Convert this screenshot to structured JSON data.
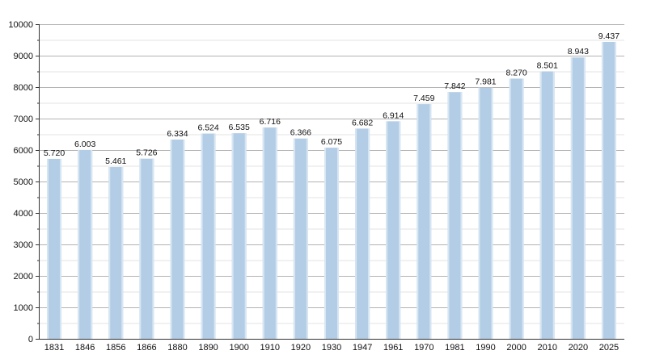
{
  "chart_data": {
    "type": "bar",
    "categories": [
      "1831",
      "1846",
      "1856",
      "1866",
      "1880",
      "1890",
      "1900",
      "1910",
      "1920",
      "1930",
      "1947",
      "1961",
      "1970",
      "1981",
      "1990",
      "2000",
      "2010",
      "2020",
      "2025"
    ],
    "values": [
      5720,
      6003,
      5461,
      5726,
      6334,
      6524,
      6535,
      6716,
      6366,
      6075,
      6682,
      6914,
      7459,
      7842,
      7981,
      8270,
      8501,
      8943,
      9437
    ],
    "value_labels": [
      "5.720",
      "6.003",
      "5.461",
      "5.726",
      "6.334",
      "6.524",
      "6.535",
      "6.716",
      "6.366",
      "6.075",
      "6.682",
      "6.914",
      "7.459",
      "7.842",
      "7.981",
      "8.270",
      "8.501",
      "8.943",
      "9.437"
    ],
    "y_ticks": [
      0,
      1000,
      2000,
      3000,
      4000,
      5000,
      6000,
      7000,
      8000,
      9000,
      10000
    ],
    "y_tick_labels": [
      "0",
      "1000",
      "2000",
      "3000",
      "4000",
      "5000",
      "6000",
      "7000",
      "8000",
      "9000",
      "10000"
    ],
    "ylim": [
      0,
      10000
    ],
    "minor_grid_step": 500,
    "grid": true,
    "legend": "none",
    "title": "",
    "xlabel": "",
    "ylabel": "",
    "colors": {
      "bar": "#b3cde6",
      "bar_edge": "#d8e6f3"
    }
  }
}
